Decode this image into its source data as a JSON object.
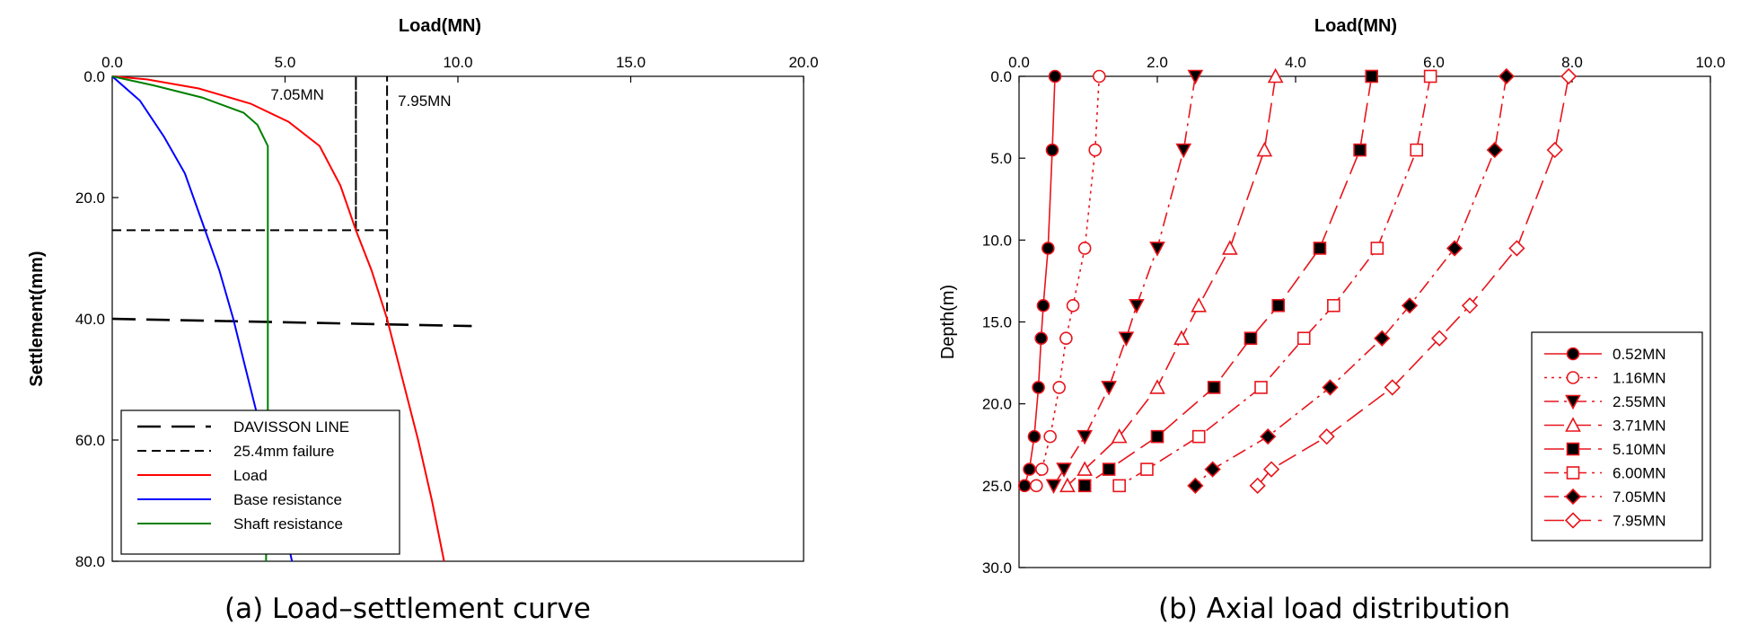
{
  "chart_data": [
    {
      "type": "line",
      "caption": "(a) Load–settlement curve",
      "xlabel": "Load(MN)",
      "ylabel": "Settlement(mm)",
      "x_axis_position": "top",
      "y_inverted": true,
      "xlim": [
        0,
        20
      ],
      "ylim": [
        0,
        80
      ],
      "xticks": [
        "0.0",
        "5.0",
        "10.0",
        "15.0",
        "20.0"
      ],
      "yticks": [
        "0.0",
        "20.0",
        "40.0",
        "60.0",
        "80.0"
      ],
      "annotations": [
        {
          "text": "7.05MN",
          "x": 7.05
        },
        {
          "text": "7.95MN",
          "x": 7.95
        }
      ],
      "legend_position": "bottom-left",
      "series": [
        {
          "name": "DAVISSON LINE",
          "color": "#000000",
          "dash": "long",
          "points": [
            [
              0,
              40.0
            ],
            [
              10.4,
              41.2
            ]
          ]
        },
        {
          "name": "25.4mm failure",
          "color": "#000000",
          "dash": "short",
          "points": [
            [
              0,
              25.4
            ],
            [
              7.05,
              25.4
            ],
            [
              7.05,
              0
            ],
            [
              7.05,
              25.4
            ],
            [
              7.95,
              25.4
            ],
            [
              7.95,
              0
            ],
            [
              7.95,
              40.6
            ]
          ]
        },
        {
          "name": "Load",
          "color": "#ff0000",
          "dash": "solid",
          "points": [
            [
              0,
              0
            ],
            [
              1.0,
              0.5
            ],
            [
              2.5,
              2.0
            ],
            [
              4.0,
              4.5
            ],
            [
              5.1,
              7.5
            ],
            [
              6.0,
              11.5
            ],
            [
              6.6,
              18.0
            ],
            [
              7.05,
              25.4
            ],
            [
              7.5,
              32.0
            ],
            [
              7.95,
              40.0
            ],
            [
              8.4,
              50.0
            ],
            [
              8.85,
              60.0
            ],
            [
              9.25,
              70.0
            ],
            [
              9.6,
              80.0
            ]
          ]
        },
        {
          "name": "Base resistance",
          "color": "#0000ff",
          "dash": "solid",
          "points": [
            [
              0,
              0
            ],
            [
              0.8,
              4.0
            ],
            [
              1.5,
              10.0
            ],
            [
              2.1,
              16.0
            ],
            [
              2.6,
              24.0
            ],
            [
              3.1,
              32.0
            ],
            [
              3.5,
              40.0
            ],
            [
              3.85,
              48.0
            ],
            [
              4.2,
              56.0
            ],
            [
              4.6,
              64.0
            ],
            [
              5.2,
              80.0
            ]
          ]
        },
        {
          "name": "Shaft resistance",
          "color": "#008000",
          "dash": "solid",
          "points": [
            [
              0,
              0
            ],
            [
              1.2,
              1.5
            ],
            [
              2.6,
              3.5
            ],
            [
              3.8,
              6.0
            ],
            [
              4.2,
              8.0
            ],
            [
              4.5,
              11.5
            ],
            [
              4.5,
              20.0
            ],
            [
              4.5,
              40.0
            ],
            [
              4.5,
              60.0
            ],
            [
              4.45,
              80.0
            ]
          ]
        }
      ]
    },
    {
      "type": "line",
      "caption": "(b) Axial load distribution",
      "xlabel": "Load(MN)",
      "ylabel": "Depth(m)",
      "x_axis_position": "top",
      "y_inverted": true,
      "xlim": [
        0,
        10
      ],
      "ylim": [
        0,
        30
      ],
      "xticks": [
        "0.0",
        "2.0",
        "4.0",
        "6.0",
        "8.0",
        "10.0"
      ],
      "yticks": [
        "0.0",
        "5.0",
        "10.0",
        "15.0",
        "20.0",
        "25.0",
        "30.0"
      ],
      "depths": [
        0,
        4.5,
        10.5,
        14,
        16,
        19,
        22,
        24,
        25
      ],
      "legend_position": "bottom-right",
      "series": [
        {
          "name": "0.52MN",
          "marker": "circle",
          "filled": true,
          "dash": "solid",
          "loads": [
            0.52,
            0.48,
            0.42,
            0.35,
            0.32,
            0.28,
            0.22,
            0.15,
            0.08
          ]
        },
        {
          "name": "1.16MN",
          "marker": "circle",
          "filled": false,
          "dash": "dotted",
          "loads": [
            1.16,
            1.1,
            0.95,
            0.78,
            0.68,
            0.58,
            0.45,
            0.33,
            0.25
          ]
        },
        {
          "name": "2.55MN",
          "marker": "triangle-down",
          "filled": true,
          "dash": "dashdot",
          "loads": [
            2.55,
            2.38,
            2.0,
            1.7,
            1.55,
            1.3,
            0.95,
            0.65,
            0.5
          ]
        },
        {
          "name": "3.71MN",
          "marker": "triangle-up",
          "filled": false,
          "dash": "longdash",
          "loads": [
            3.71,
            3.55,
            3.05,
            2.6,
            2.35,
            2.0,
            1.45,
            0.95,
            0.7
          ]
        },
        {
          "name": "5.10MN",
          "marker": "square",
          "filled": true,
          "dash": "longdash",
          "loads": [
            5.1,
            4.93,
            4.35,
            3.75,
            3.35,
            2.82,
            2.0,
            1.3,
            0.95
          ]
        },
        {
          "name": "6.00MN",
          "marker": "square",
          "filled": false,
          "dash": "dashdot",
          "loads": [
            5.95,
            5.75,
            5.18,
            4.55,
            4.12,
            3.5,
            2.6,
            1.85,
            1.45
          ]
        },
        {
          "name": "7.05MN",
          "marker": "diamond",
          "filled": true,
          "dash": "dashdot",
          "loads": [
            7.05,
            6.88,
            6.3,
            5.65,
            5.25,
            4.5,
            3.6,
            2.8,
            2.55
          ]
        },
        {
          "name": "7.95MN",
          "marker": "diamond",
          "filled": false,
          "dash": "longdash",
          "loads": [
            7.95,
            7.75,
            7.2,
            6.52,
            6.08,
            5.4,
            4.45,
            3.65,
            3.45
          ]
        }
      ]
    }
  ]
}
